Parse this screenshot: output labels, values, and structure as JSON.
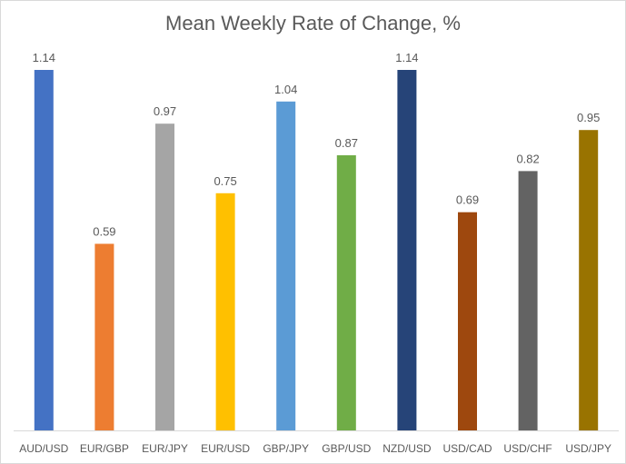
{
  "chart_data": {
    "type": "bar",
    "title": "Mean Weekly Rate of Change, %",
    "xlabel": "",
    "ylabel": "",
    "categories": [
      "AUD/USD",
      "EUR/GBP",
      "EUR/JPY",
      "EUR/USD",
      "GBP/JPY",
      "GBP/USD",
      "NZD/USD",
      "USD/CAD",
      "USD/CHF",
      "USD/JPY"
    ],
    "values": [
      1.14,
      0.59,
      0.97,
      0.75,
      1.04,
      0.87,
      1.14,
      0.69,
      0.82,
      0.95
    ],
    "value_labels": [
      "1.14",
      "0.59",
      "0.97",
      "0.75",
      "1.04",
      "0.87",
      "1.14",
      "0.69",
      "0.82",
      "0.95"
    ],
    "colors": [
      "#4472C4",
      "#ED7D31",
      "#A5A5A5",
      "#FFC000",
      "#5B9BD5",
      "#70AD47",
      "#264478",
      "#9E480E",
      "#636363",
      "#997300"
    ],
    "ylim": [
      0,
      1.14
    ],
    "grid": false,
    "legend": "none"
  }
}
